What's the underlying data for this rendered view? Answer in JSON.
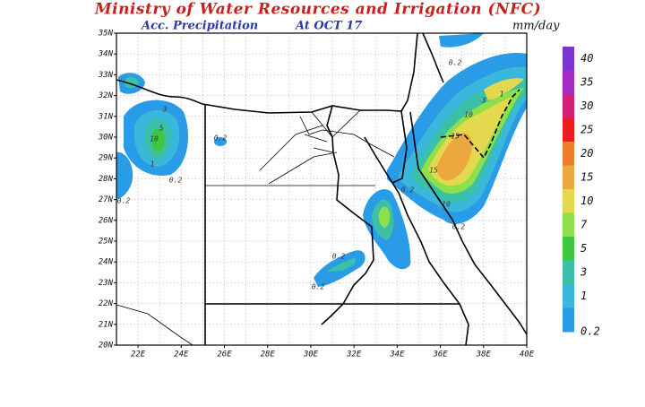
{
  "header": {
    "title": "Ministry of Water Resources and Irrigation (NFC)",
    "product": "Acc. Precipitation",
    "date": "At OCT 17",
    "unit": "mm/day"
  },
  "map": {
    "lat_labels": [
      "35N",
      "34N",
      "33N",
      "32N",
      "31N",
      "30N",
      "29N",
      "28N",
      "27N",
      "26N",
      "25N",
      "24N",
      "23N",
      "22N",
      "21N",
      "20N"
    ],
    "lon_labels": [
      "22E",
      "24E",
      "26E",
      "28E",
      "30E",
      "32E",
      "34E",
      "36E",
      "38E",
      "40E"
    ],
    "contour_labels": [
      "0.2",
      "10",
      "15",
      "15",
      "10",
      "3",
      "1",
      "0.2",
      "0.2",
      "0.2",
      "0.2",
      "10",
      "5",
      "3",
      "1",
      "0.2",
      "0.2",
      "0.2"
    ]
  },
  "legend": {
    "levels": [
      {
        "label": "40",
        "color": "#7a34d8"
      },
      {
        "label": "35",
        "color": "#a52bc4"
      },
      {
        "label": "30",
        "color": "#d4207a"
      },
      {
        "label": "25",
        "color": "#ee1c1c"
      },
      {
        "label": "20",
        "color": "#ef7d2b"
      },
      {
        "label": "15",
        "color": "#eca83e"
      },
      {
        "label": "10",
        "color": "#e4d94e"
      },
      {
        "label": "7",
        "color": "#8ee04a"
      },
      {
        "label": "5",
        "color": "#3ec83e"
      },
      {
        "label": "3",
        "color": "#3cc0a8"
      },
      {
        "label": "1",
        "color": "#3ab8dc"
      },
      {
        "label": "0.2",
        "color": "#2a9be6"
      }
    ]
  }
}
